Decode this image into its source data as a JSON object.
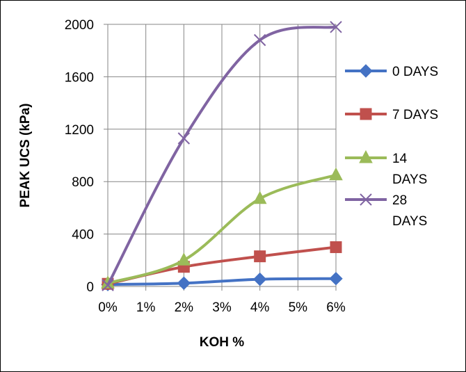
{
  "chart_data": {
    "type": "line",
    "title": "",
    "xlabel": "KOH %",
    "ylabel": "PEAK UCS (kPa)",
    "x_ticks": [
      "0%",
      "1%",
      "2%",
      "3%",
      "4%",
      "5%",
      "6%"
    ],
    "x_range": [
      0,
      6
    ],
    "y_ticks": [
      "0",
      "400",
      "800",
      "1200",
      "1600",
      "2000"
    ],
    "ylim": [
      0,
      2000
    ],
    "grid": "vertical gridlines",
    "legend_position": "right",
    "x": [
      0,
      2,
      4,
      6
    ],
    "series": [
      {
        "name": "0 DAYS",
        "values": [
          15,
          25,
          55,
          60
        ],
        "color": "#4472C4",
        "marker": "diamond"
      },
      {
        "name": "7 DAYS",
        "values": [
          20,
          150,
          230,
          300
        ],
        "color": "#C0504D",
        "marker": "square"
      },
      {
        "name": "14 DAYS",
        "values": [
          25,
          200,
          670,
          850
        ],
        "color": "#9BBB59",
        "marker": "triangle"
      },
      {
        "name": "28 DAYS",
        "values": [
          10,
          1130,
          1880,
          1980
        ],
        "color": "#8064A2",
        "marker": "x"
      }
    ]
  }
}
